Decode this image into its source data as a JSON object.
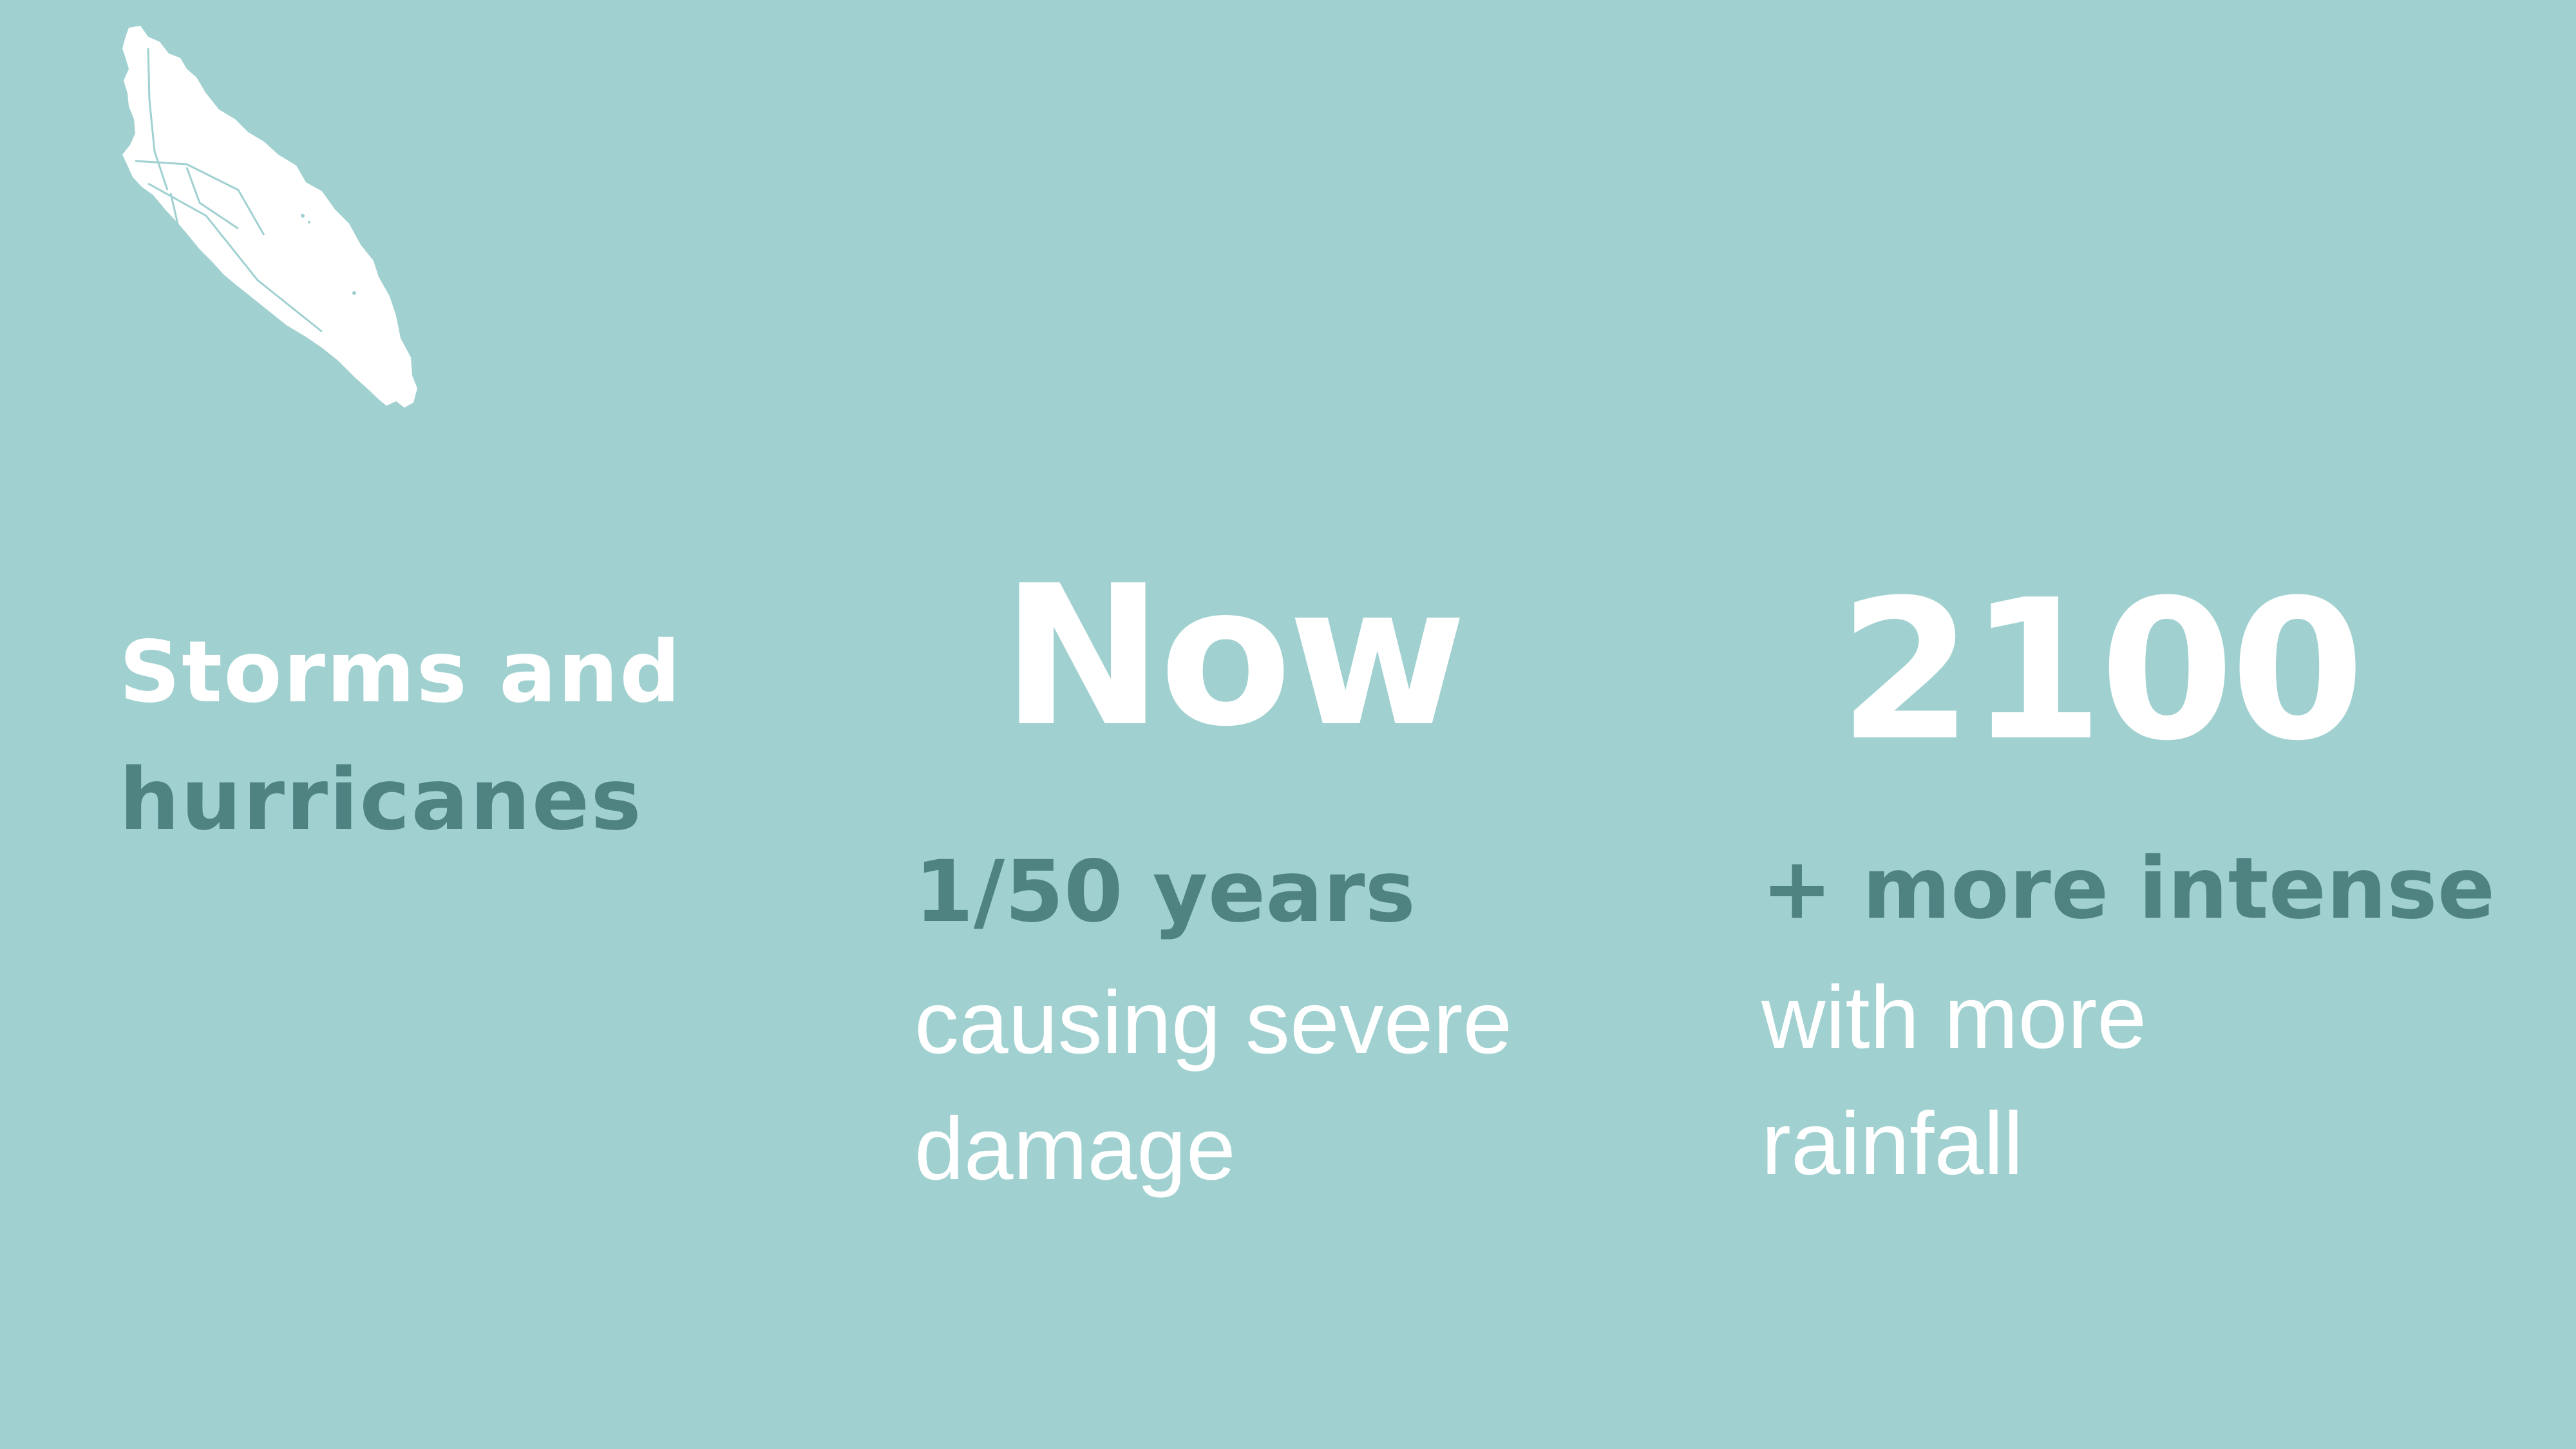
{
  "colors": {
    "background": "#a0d1d0",
    "accent_dark": "#4f8382",
    "text_light": "#ffffff"
  },
  "map": {
    "icon": "island-map-icon"
  },
  "topic": {
    "line1": "Storms and",
    "line2": "hurricanes"
  },
  "now": {
    "heading": "Now",
    "highlight": "1/50 years",
    "desc_line1": "causing severe",
    "desc_line2": "damage"
  },
  "future": {
    "heading": "2100",
    "highlight": "+ more intense",
    "desc_line1": "with more",
    "desc_line2": "rainfall"
  }
}
